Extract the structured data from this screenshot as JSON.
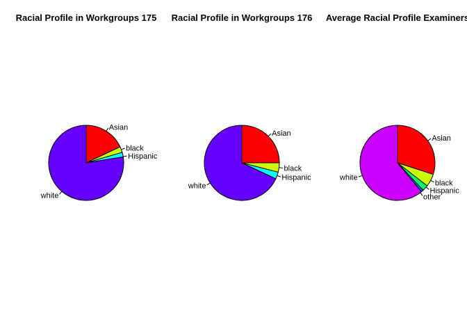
{
  "chart_data": [
    {
      "type": "pie",
      "title": "Racial Profile in Workgroups 175",
      "start_angle_deg": 90,
      "direction": "clockwise",
      "slices": [
        {
          "label": "Asian",
          "value": 0.18,
          "color": "#FF0000"
        },
        {
          "label": "black",
          "value": 0.025,
          "color": "#CCFF00"
        },
        {
          "label": "Hispanic",
          "value": 0.02,
          "color": "#00FFFF"
        },
        {
          "label": "white",
          "value": 0.775,
          "color": "#6600FF"
        }
      ]
    },
    {
      "type": "pie",
      "title": "Racial Profile in Workgroups 176",
      "start_angle_deg": 90,
      "direction": "clockwise",
      "slices": [
        {
          "label": "Asian",
          "value": 0.25,
          "color": "#FF0000"
        },
        {
          "label": "black",
          "value": 0.04,
          "color": "#CCFF00"
        },
        {
          "label": "Hispanic",
          "value": 0.03,
          "color": "#00FFFF"
        },
        {
          "label": "white",
          "value": 0.68,
          "color": "#6600FF"
        }
      ]
    },
    {
      "type": "pie",
      "title": "Average Racial Profile Examiners",
      "start_angle_deg": 90,
      "direction": "clockwise",
      "slices": [
        {
          "label": "Asian",
          "value": 0.3,
          "color": "#FF0000"
        },
        {
          "label": "black",
          "value": 0.055,
          "color": "#CCFF00"
        },
        {
          "label": "Hispanic",
          "value": 0.025,
          "color": "#00FF66"
        },
        {
          "label": "other",
          "value": 0.01,
          "color": "#0066FF"
        },
        {
          "label": "white",
          "value": 0.61,
          "color": "#CC00FF"
        }
      ]
    }
  ]
}
